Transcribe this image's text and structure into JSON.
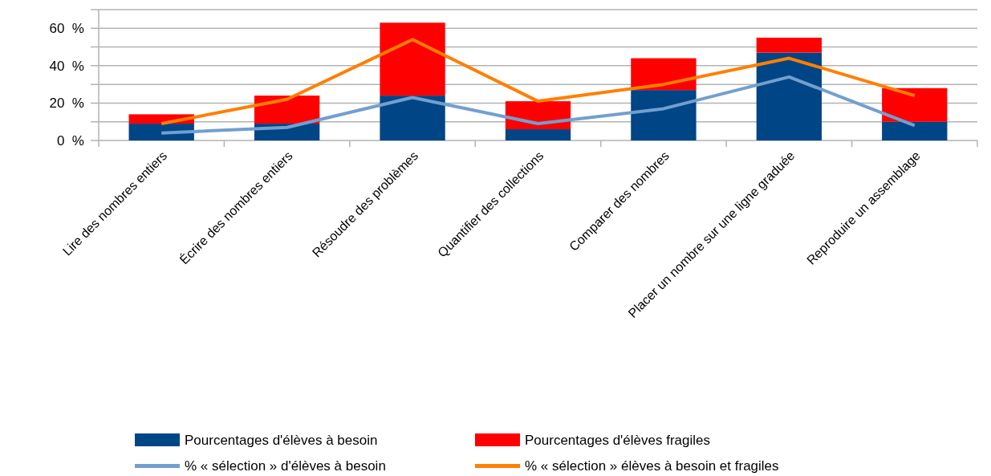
{
  "chart_data": {
    "type": "bar",
    "stacked": true,
    "categories": [
      "Lire des nombres entiers",
      "Écrire des nombres entiers",
      "Résoudre des problèmes",
      "Quantifier des collections",
      "Comparer des nombres",
      "Placer un nombre sur une ligne graduée",
      "Reproduire un assemblage"
    ],
    "series": [
      {
        "name": "Pourcentages d'élèves à besoin",
        "color": "#004586",
        "values": [
          9,
          9,
          24,
          6,
          27,
          47,
          10
        ]
      },
      {
        "name": "Pourcentages d'élèves fragiles",
        "color": "#ff0000",
        "values": [
          5,
          15,
          39,
          15,
          17,
          8,
          18
        ]
      },
      {
        "name": "% « sélection » d'élèves à besoin",
        "type": "line",
        "color": "#729fcf",
        "values": [
          4,
          7,
          23,
          9,
          17,
          34,
          8
        ]
      },
      {
        "name": "% « sélection » élèves à besoin et fragiles",
        "type": "line",
        "color": "#ff7f00",
        "values": [
          9,
          22,
          54,
          21,
          30,
          44,
          24
        ]
      }
    ],
    "ylim": [
      0,
      70
    ],
    "yticks": [
      {
        "value": 0,
        "label": "0  %"
      },
      {
        "value": 10,
        "label": null
      },
      {
        "value": 20,
        "label": "20  %"
      },
      {
        "value": 30,
        "label": null
      },
      {
        "value": 40,
        "label": "40  %"
      },
      {
        "value": 50,
        "label": null
      },
      {
        "value": 60,
        "label": "60  %"
      },
      {
        "value": 70,
        "label": null
      }
    ],
    "grid": true,
    "legend": "bottom"
  }
}
